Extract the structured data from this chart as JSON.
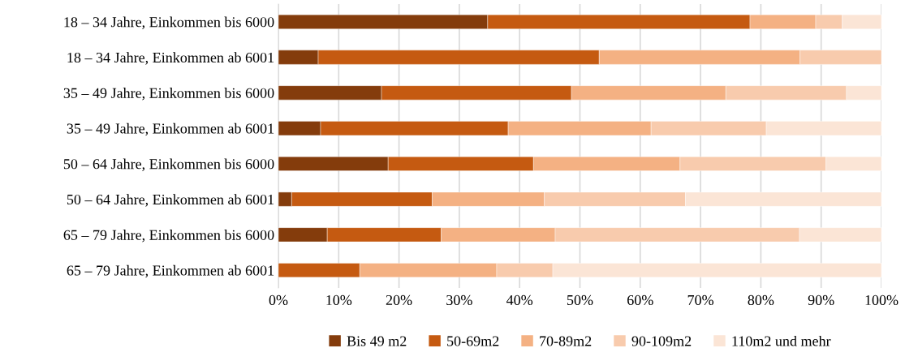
{
  "chart_data": {
    "type": "bar",
    "orientation": "horizontal",
    "stacked": true,
    "categories": [
      "18 – 34 Jahre, Einkommen bis 6000",
      "18 – 34 Jahre, Einkommen ab 6001",
      "35 – 49 Jahre, Einkommen bis 6000",
      "35 – 49 Jahre, Einkommen ab 6001",
      "50 – 64 Jahre, Einkommen bis 6000",
      "50 – 64 Jahre, Einkommen ab 6001",
      "65 – 79 Jahre, Einkommen bis 6000",
      "65 – 79 Jahre, Einkommen ab 6001"
    ],
    "series": [
      {
        "name": "Bis 49 m2",
        "color": "#843c0c",
        "values": [
          34.7,
          6.6,
          17.1,
          7.0,
          18.2,
          2.2,
          8.1,
          null
        ]
      },
      {
        "name": "50-69m2",
        "color": "#c55a11",
        "values": [
          43.5,
          46.6,
          31.5,
          31.1,
          24.1,
          23.3,
          18.9,
          13.5
        ]
      },
      {
        "name": "70-89m2",
        "color": "#f4b183",
        "values": [
          10.9,
          33.3,
          25.6,
          23.7,
          24.3,
          18.6,
          18.9,
          22.7
        ]
      },
      {
        "name": "90-109m2",
        "color": "#f8cbad",
        "values": [
          4.4,
          13.5,
          20.0,
          19.1,
          24.2,
          23.4,
          40.5,
          9.3
        ]
      },
      {
        "name": "110m2 und mehr",
        "color": "#fbe5d6",
        "values": [
          6.5,
          null,
          5.8,
          19.1,
          9.2,
          32.5,
          13.6,
          54.5
        ]
      }
    ],
    "xlim": [
      0,
      100
    ],
    "xticks": [
      {
        "value": 0,
        "label": "0%"
      },
      {
        "value": 10,
        "label": "10%"
      },
      {
        "value": 20,
        "label": "20%"
      },
      {
        "value": 30,
        "label": "30%"
      },
      {
        "value": 40,
        "label": "40%"
      },
      {
        "value": 50,
        "label": "50%"
      },
      {
        "value": 60,
        "label": "60%"
      },
      {
        "value": 70,
        "label": "70%"
      },
      {
        "value": 80,
        "label": "80%"
      },
      {
        "value": 90,
        "label": "90%"
      },
      {
        "value": 100,
        "label": "100%"
      }
    ],
    "grid": "x",
    "legend": "bottom"
  }
}
